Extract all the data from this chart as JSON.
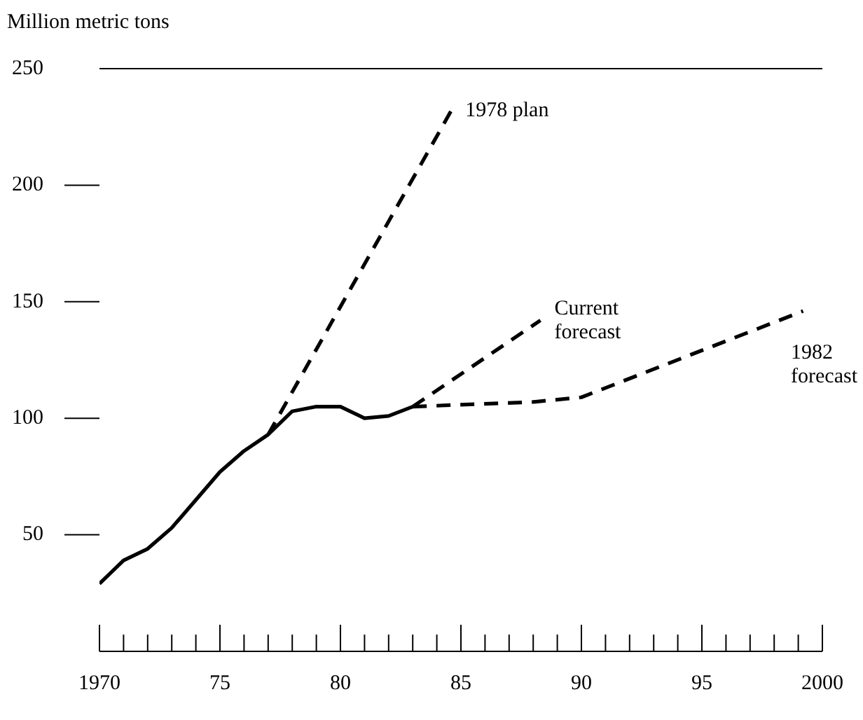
{
  "chart_data": {
    "type": "line",
    "ylabel": "Million metric tons",
    "xlim": [
      1970,
      2000
    ],
    "ylim": [
      0,
      250
    ],
    "yticks": [
      {
        "value": 0,
        "label": null
      },
      50,
      100,
      150,
      200,
      250
    ],
    "xticks": [
      {
        "value": 1970,
        "label": "1970"
      },
      {
        "value": 1971,
        "label": null
      },
      {
        "value": 1972,
        "label": null
      },
      {
        "value": 1973,
        "label": null
      },
      {
        "value": 1974,
        "label": null
      },
      {
        "value": 1975,
        "label": "75"
      },
      {
        "value": 1976,
        "label": null
      },
      {
        "value": 1977,
        "label": null
      },
      {
        "value": 1978,
        "label": null
      },
      {
        "value": 1979,
        "label": null
      },
      {
        "value": 1980,
        "label": "80"
      },
      {
        "value": 1981,
        "label": null
      },
      {
        "value": 1982,
        "label": null
      },
      {
        "value": 1983,
        "label": null
      },
      {
        "value": 1984,
        "label": null
      },
      {
        "value": 1985,
        "label": "85"
      },
      {
        "value": 1986,
        "label": null
      },
      {
        "value": 1987,
        "label": null
      },
      {
        "value": 1988,
        "label": null
      },
      {
        "value": 1989,
        "label": null
      },
      {
        "value": 1990,
        "label": "90"
      },
      {
        "value": 1991,
        "label": null
      },
      {
        "value": 1992,
        "label": null
      },
      {
        "value": 1993,
        "label": null
      },
      {
        "value": 1994,
        "label": null
      },
      {
        "value": 1995,
        "label": "95"
      },
      {
        "value": 1996,
        "label": null
      },
      {
        "value": 1997,
        "label": null
      },
      {
        "value": 1998,
        "label": null
      },
      {
        "value": 1999,
        "label": null
      },
      {
        "value": 2000,
        "label": "2000"
      }
    ],
    "grid": false,
    "legend": false,
    "marker": "none",
    "series": [
      {
        "color": "#000000",
        "line_style": "solid",
        "x": [
          1970,
          1971,
          1972,
          1973,
          1974,
          1975,
          1976,
          1977,
          1978,
          1979,
          1980,
          1981,
          1982,
          1983
        ],
        "values": [
          29,
          39,
          44,
          53,
          65,
          77,
          86,
          93,
          103,
          105,
          105,
          100,
          101,
          105
        ]
      },
      {
        "name": "1978 plan",
        "color": "#000000",
        "line_style": "dashed",
        "x": [
          1977,
          1984.6
        ],
        "values": [
          93,
          232
        ]
      },
      {
        "name": "Current forecast",
        "color": "#000000",
        "line_style": "dashed",
        "x": [
          1983,
          1988.3
        ],
        "values": [
          105,
          142
        ]
      },
      {
        "name": "1982 forecast",
        "color": "#000000",
        "line_style": "dashed",
        "x": [
          1983,
          1988,
          1990,
          1999.2
        ],
        "values": [
          105,
          107,
          109,
          146
        ]
      }
    ]
  }
}
